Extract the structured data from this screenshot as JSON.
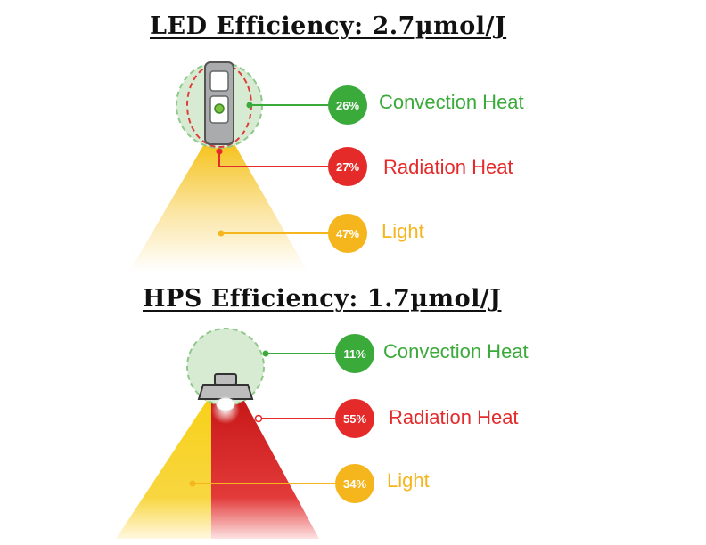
{
  "colors": {
    "convection": "#3aaa3a",
    "radiation": "#e52a2a",
    "light": "#f5b51c"
  },
  "led": {
    "title": "LED Efficiency: 2.7µmol/J",
    "items": [
      {
        "pct": "26%",
        "label": "Convection Heat"
      },
      {
        "pct": "27%",
        "label": "Radiation Heat"
      },
      {
        "pct": "47%",
        "label": "Light"
      }
    ]
  },
  "hps": {
    "title": "HPS Efficiency: 1.7µmol/J",
    "items": [
      {
        "pct": "11%",
        "label": "Convection Heat"
      },
      {
        "pct": "55%",
        "label": "Radiation Heat"
      },
      {
        "pct": "34%",
        "label": "Light"
      }
    ]
  }
}
